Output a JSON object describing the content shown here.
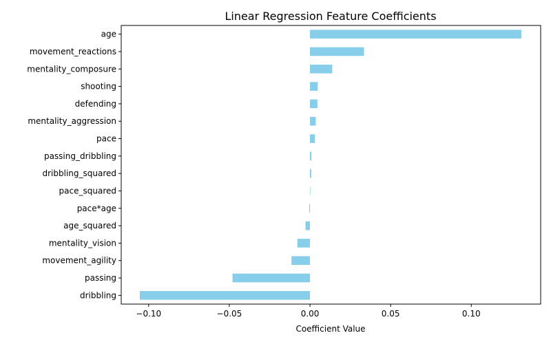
{
  "chart_data": {
    "type": "bar",
    "orientation": "horizontal",
    "title": "Linear Regression Feature Coefficients",
    "xlabel": "Coefficient Value",
    "ylabel": "",
    "xlim": [
      -0.117,
      0.143
    ],
    "xticks": [
      -0.1,
      -0.05,
      0.0,
      0.05,
      0.1
    ],
    "xtick_labels": [
      "−0.10",
      "−0.05",
      "0.00",
      "0.05",
      "0.10"
    ],
    "grid": false,
    "bar_color": "#87CEEB",
    "categories": [
      "age",
      "movement_reactions",
      "mentality_composure",
      "shooting",
      "defending",
      "mentality_aggression",
      "pace",
      "passing_dribbling",
      "dribbling_squared",
      "pace_squared",
      "pace*age",
      "age_squared",
      "mentality_vision",
      "movement_agility",
      "passing",
      "dribbling"
    ],
    "values": [
      0.131,
      0.0335,
      0.0138,
      0.0048,
      0.0046,
      0.0036,
      0.003,
      0.0009,
      0.0008,
      0.0,
      -0.0005,
      -0.0028,
      -0.0078,
      -0.0115,
      -0.048,
      -0.1055
    ]
  }
}
